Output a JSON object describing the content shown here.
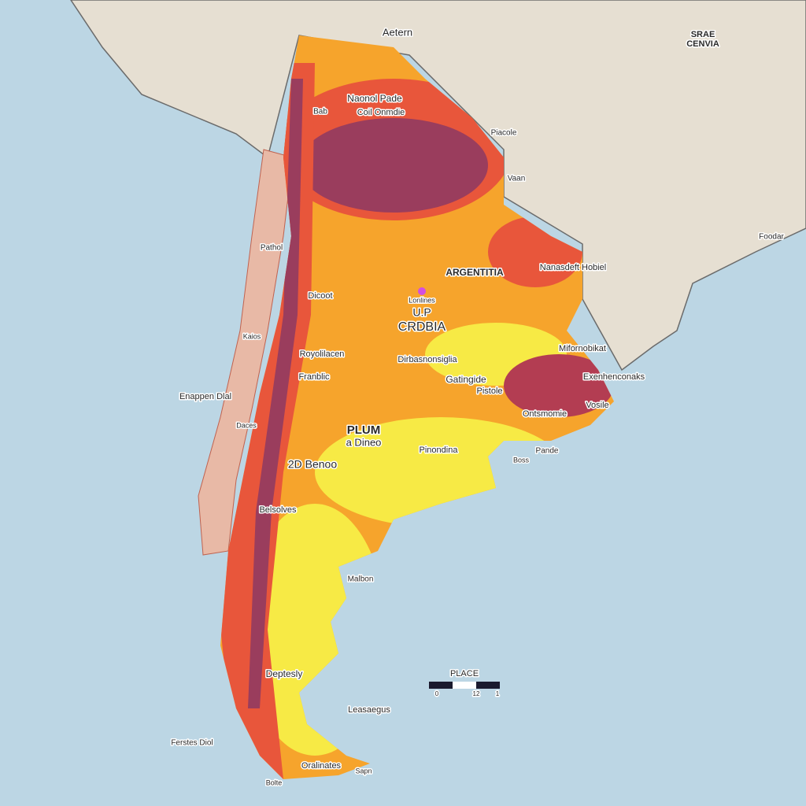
{
  "labels": [
    "Aetern",
    "SRAE",
    "CENVIA",
    "Naonol Pade",
    "Bab",
    "Coil Onmdie",
    "Piacole",
    "Vaan",
    "Foodar",
    "ARGENTITIA",
    "Nanasdeft Hobiel",
    "Dicoot",
    "Lonlines",
    "U.P",
    "CRDBIA",
    "Pathol",
    "Kaios",
    "Royolilacen",
    "Franblic",
    "Dirbasnonsiglia",
    "Mifornobikat",
    "Exenhenconaks",
    "Enappen Dlal",
    "Gatingide",
    "Pistole",
    "Ontsmomie",
    "Vosile",
    "Daces",
    "PLUM",
    "a Dineo",
    "2D Benoo",
    "Pinondina",
    "Pande",
    "Boss",
    "Belsolves",
    "Malbon",
    "Deptesly",
    "Leasaegus",
    "Ferstes Diol",
    "Sapn",
    "Oralinates",
    "Bolte"
  ],
  "scale_bar": {
    "title": "PLACE",
    "ticks": [
      "0",
      "12",
      "1"
    ]
  }
}
